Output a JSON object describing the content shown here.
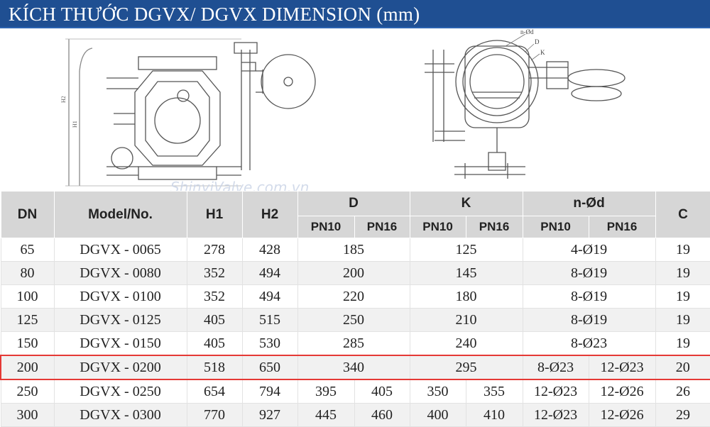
{
  "header": {
    "title": "KÍCH THƯỚC DGVX/ DGVX DIMENSION (mm)"
  },
  "watermark": "ShinyiValve.com.vn",
  "drawing": {
    "left_labels": [
      "H2",
      "H1"
    ],
    "right_labels": [
      "n-Ød",
      "D",
      "K"
    ]
  },
  "table": {
    "columns": {
      "dn": "DN",
      "model": "Model/No.",
      "h1": "H1",
      "h2": "H2",
      "d": "D",
      "k": "K",
      "nod": "n-Ød",
      "c": "C"
    },
    "sub": [
      "PN10",
      "PN16"
    ],
    "highlight_row": 5,
    "rows": [
      {
        "dn": 65,
        "model": "DGVX - 0065",
        "h1": 278,
        "h2": 428,
        "d": [
          185
        ],
        "k": [
          125
        ],
        "nod": [
          "4-Ø19"
        ],
        "c": 19
      },
      {
        "dn": 80,
        "model": "DGVX - 0080",
        "h1": 352,
        "h2": 494,
        "d": [
          200
        ],
        "k": [
          145
        ],
        "nod": [
          "8-Ø19"
        ],
        "c": 19
      },
      {
        "dn": 100,
        "model": "DGVX - 0100",
        "h1": 352,
        "h2": 494,
        "d": [
          220
        ],
        "k": [
          180
        ],
        "nod": [
          "8-Ø19"
        ],
        "c": 19
      },
      {
        "dn": 125,
        "model": "DGVX - 0125",
        "h1": 405,
        "h2": 515,
        "d": [
          250
        ],
        "k": [
          210
        ],
        "nod": [
          "8-Ø19"
        ],
        "c": 19
      },
      {
        "dn": 150,
        "model": "DGVX - 0150",
        "h1": 405,
        "h2": 530,
        "d": [
          285
        ],
        "k": [
          240
        ],
        "nod": [
          "8-Ø23"
        ],
        "c": 19
      },
      {
        "dn": 200,
        "model": "DGVX - 0200",
        "h1": 518,
        "h2": 650,
        "d": [
          340
        ],
        "k": [
          295
        ],
        "nod": [
          "8-Ø23",
          "12-Ø23"
        ],
        "c": 20
      },
      {
        "dn": 250,
        "model": "DGVX - 0250",
        "h1": 654,
        "h2": 794,
        "d": [
          395,
          405
        ],
        "k": [
          350,
          355
        ],
        "nod": [
          "12-Ø23",
          "12-Ø26"
        ],
        "c": 26
      },
      {
        "dn": 300,
        "model": "DGVX - 0300",
        "h1": 770,
        "h2": 927,
        "d": [
          445,
          460
        ],
        "k": [
          400,
          410
        ],
        "nod": [
          "12-Ø23",
          "12-Ø26"
        ],
        "c": 29
      }
    ]
  }
}
